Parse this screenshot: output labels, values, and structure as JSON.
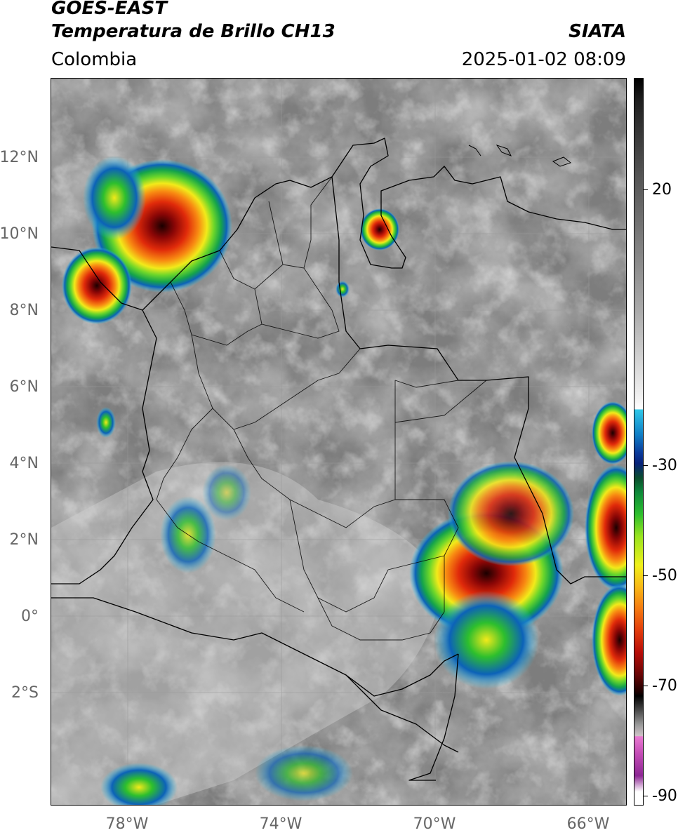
{
  "header": {
    "title_line1": "GOES-EAST",
    "title_line2": "Temperatura de Brillo CH13",
    "organization": "SIATA",
    "region": "Colombia",
    "timestamp": "2025-01-02 08:09"
  },
  "map": {
    "lon_range": [
      -80,
      -65
    ],
    "lat_range": [
      -5,
      14
    ],
    "lat_ticks": [
      "12°N",
      "10°N",
      "8°N",
      "6°N",
      "4°N",
      "2°N",
      "0°",
      "2°S"
    ],
    "lon_ticks": [
      "78°W",
      "74°W",
      "70°W",
      "66°W"
    ]
  },
  "colorbar": {
    "tick_labels": [
      "20",
      "-30",
      "-50",
      "-70",
      "-90"
    ]
  }
}
